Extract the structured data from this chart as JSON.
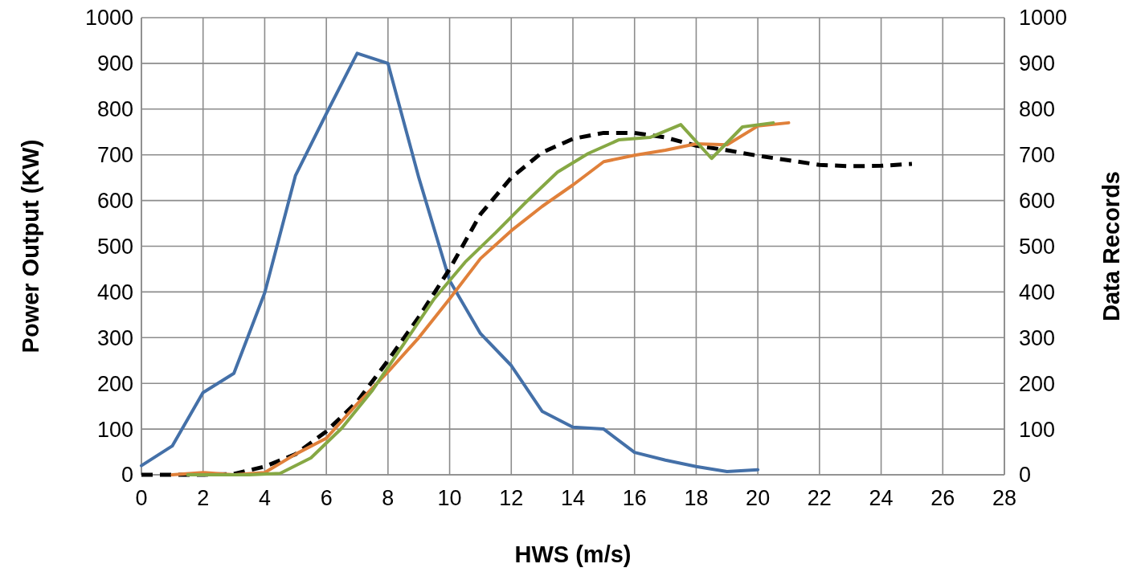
{
  "chart_data": {
    "type": "line",
    "xlabel": "HWS (m/s)",
    "ylabel": "Power Output (KW)",
    "y2label": "Data Records",
    "xlim": [
      0,
      28
    ],
    "xticks": [
      0,
      2,
      4,
      6,
      8,
      10,
      12,
      14,
      16,
      18,
      20,
      22,
      24,
      26,
      28
    ],
    "ylim": [
      0,
      1000
    ],
    "yticks": [
      0,
      100,
      200,
      300,
      400,
      500,
      600,
      700,
      800,
      900,
      1000
    ],
    "y2lim": [
      0,
      1000
    ],
    "y2ticks": [
      0,
      100,
      200,
      300,
      400,
      500,
      600,
      700,
      800,
      900,
      1000
    ],
    "grid": true,
    "marker": "none",
    "series": [
      {
        "color": "#4470a8",
        "line_style": "solid",
        "x": [
          0,
          1,
          2,
          3,
          4,
          5,
          6,
          7,
          8,
          9,
          10,
          11,
          12,
          13,
          14,
          15,
          16,
          17,
          18,
          19,
          20
        ],
        "values": [
          20,
          63,
          180,
          222,
          398,
          655,
          790,
          922,
          900,
          650,
          425,
          309,
          239,
          139,
          104,
          100,
          49,
          32,
          18,
          7,
          11
        ]
      },
      {
        "color": "#000000",
        "line_style": "dashed",
        "x": [
          0,
          1,
          2,
          3,
          4,
          5,
          6,
          7,
          8,
          9,
          10,
          11,
          12,
          13,
          14,
          15,
          16,
          17,
          18,
          19,
          20,
          21,
          22,
          23,
          24,
          25
        ],
        "values": [
          0,
          0,
          0,
          2,
          18,
          45,
          95,
          160,
          250,
          345,
          450,
          570,
          650,
          705,
          735,
          748,
          748,
          738,
          720,
          710,
          698,
          688,
          678,
          675,
          676,
          680
        ]
      },
      {
        "color": "#e0803a",
        "line_style": "solid",
        "x": [
          1,
          2,
          3,
          4,
          5,
          6,
          7,
          8,
          9,
          10,
          11,
          12,
          13,
          14,
          15,
          16,
          17,
          18,
          19,
          20,
          21
        ],
        "values": [
          0,
          5,
          0,
          5,
          45,
          80,
          155,
          225,
          300,
          385,
          473,
          534,
          587,
          634,
          685,
          699,
          710,
          724,
          722,
          763,
          770
        ]
      },
      {
        "color": "#86a844",
        "line_style": "solid",
        "x": [
          1.5,
          2.5,
          3.5,
          4.5,
          5.5,
          6.5,
          7.5,
          8.5,
          9.5,
          10.5,
          11.5,
          12.5,
          13.5,
          14.5,
          15.5,
          16.5,
          17.5,
          18.5,
          19.5,
          20.5
        ],
        "values": [
          0,
          0,
          0,
          3,
          37,
          102,
          185,
          285,
          385,
          465,
          530,
          598,
          662,
          703,
          733,
          738,
          766,
          692,
          761,
          770
        ]
      }
    ]
  }
}
